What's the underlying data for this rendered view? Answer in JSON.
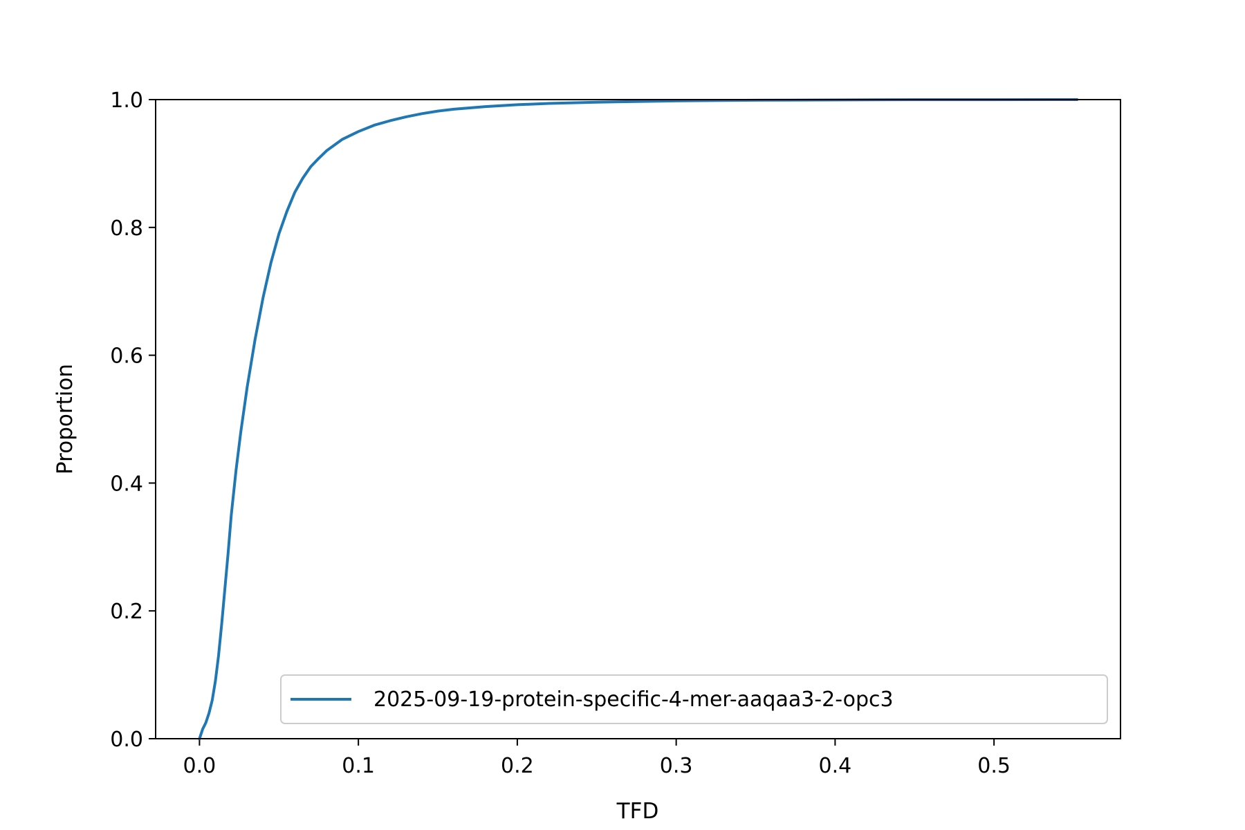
{
  "chart_data": {
    "type": "line",
    "title": "",
    "xlabel": "TFD",
    "ylabel": "Proportion",
    "xlim": [
      -0.0276,
      0.5796
    ],
    "ylim": [
      0.0,
      1.0
    ],
    "xticks": [
      0.0,
      0.1,
      0.2,
      0.3,
      0.4,
      0.5
    ],
    "xtick_labels": [
      "0.0",
      "0.1",
      "0.2",
      "0.3",
      "0.4",
      "0.5"
    ],
    "yticks": [
      0.0,
      0.2,
      0.4,
      0.6,
      0.8,
      1.0
    ],
    "ytick_labels": [
      "0.0",
      "0.2",
      "0.4",
      "0.6",
      "0.8",
      "1.0"
    ],
    "grid": false,
    "legend_position": "lower-right",
    "series": [
      {
        "name": "2025-09-19-protein-specific-4-mer-aaqaa3-2-opc3",
        "color": "#1f77b4",
        "x": [
          0.0,
          0.002,
          0.004,
          0.006,
          0.008,
          0.01,
          0.012,
          0.014,
          0.016,
          0.018,
          0.02,
          0.023,
          0.026,
          0.03,
          0.035,
          0.04,
          0.045,
          0.05,
          0.055,
          0.06,
          0.065,
          0.07,
          0.075,
          0.08,
          0.09,
          0.1,
          0.11,
          0.12,
          0.13,
          0.14,
          0.15,
          0.16,
          0.18,
          0.2,
          0.22,
          0.25,
          0.3,
          0.35,
          0.4,
          0.45,
          0.5,
          0.552
        ],
        "y": [
          0.0,
          0.015,
          0.025,
          0.04,
          0.06,
          0.09,
          0.13,
          0.18,
          0.235,
          0.29,
          0.35,
          0.42,
          0.48,
          0.55,
          0.625,
          0.69,
          0.745,
          0.79,
          0.825,
          0.855,
          0.877,
          0.895,
          0.908,
          0.92,
          0.938,
          0.95,
          0.96,
          0.967,
          0.973,
          0.978,
          0.982,
          0.985,
          0.989,
          0.992,
          0.994,
          0.996,
          0.998,
          0.999,
          0.9995,
          0.9998,
          0.9999,
          1.0
        ]
      }
    ]
  }
}
